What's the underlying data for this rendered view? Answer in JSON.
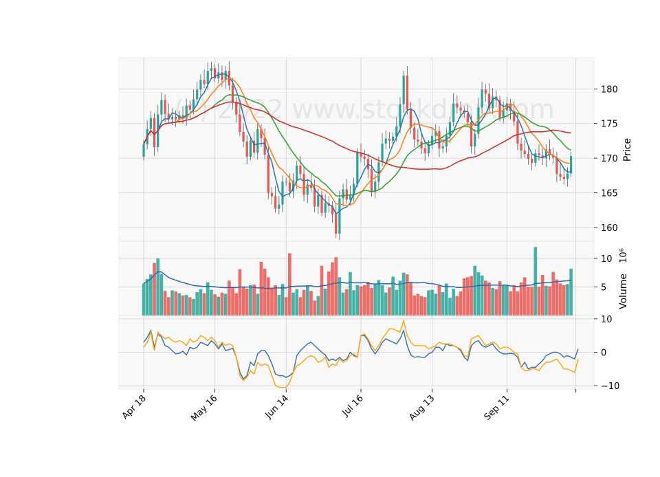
{
  "watermark": "(c) 2022 www.stockdrop.com",
  "chart_data": [
    {
      "type": "candlestick",
      "panel": "price",
      "ylabel": "Price",
      "ylim": [
        158,
        184.5
      ],
      "yticks": [
        160,
        165,
        170,
        175,
        180
      ],
      "x_tick_labels": [
        "Apr 18",
        "May 16",
        "Jun 14",
        "Jul 16",
        "Aug 13",
        "Sep 11"
      ],
      "x_tick_indices": [
        0,
        20,
        40,
        61,
        81,
        102
      ],
      "n_bars": 121,
      "close": [
        172,
        174.2,
        175.8,
        171.6,
        176.3,
        178.4,
        176.4,
        175.6,
        176.0,
        175.6,
        176.2,
        175.7,
        177.6,
        177.0,
        178.5,
        179.9,
        181.3,
        180.7,
        182.6,
        183.0,
        181.5,
        182.4,
        181.3,
        182.6,
        180.5,
        178.0,
        176.3,
        173.8,
        172.4,
        170.2,
        172.5,
        170.8,
        174.2,
        172.9,
        170.5,
        165.0,
        164.5,
        162.7,
        163.3,
        166.6,
        166.5,
        165.2,
        166.8,
        168.9,
        167.7,
        164.7,
        166.2,
        165.7,
        163.0,
        164.7,
        162.1,
        163.5,
        163.1,
        161.9,
        159.1,
        164.2,
        165.5,
        164.0,
        164.8,
        166.3,
        170.8,
        170.2,
        169.9,
        168.4,
        165.1,
        166.6,
        169.4,
        172.1,
        172.8,
        172.5,
        173.1,
        174.6,
        177.8,
        181.9,
        177.0,
        174.4,
        172.7,
        172.4,
        171.4,
        170.7,
        172.0,
        173.2,
        173.9,
        171.4,
        171.7,
        173.3,
        175.2,
        177.9,
        177.3,
        176.9,
        176.4,
        175.2,
        171.7,
        173.5,
        177.3,
        179.9,
        179.3,
        177.2,
        178.9,
        178.4,
        175.8,
        176.9,
        177.9,
        176.8,
        175.3,
        172.1,
        171.1,
        170.6,
        169.9,
        169.3,
        170.7,
        170.4,
        170.0,
        171.3,
        170.4,
        170.1,
        167.7,
        167.3,
        167.0,
        167.8,
        170.3
      ],
      "open": [
        170.2,
        172.0,
        174.2,
        175.8,
        171.6,
        176.3,
        178.4,
        176.4,
        175.6,
        176.0,
        175.6,
        176.2,
        175.7,
        177.6,
        177.0,
        178.5,
        179.9,
        181.3,
        180.7,
        182.6,
        183.0,
        181.5,
        182.4,
        181.3,
        182.6,
        180.5,
        178.0,
        176.3,
        173.8,
        172.4,
        170.2,
        172.5,
        170.8,
        174.2,
        172.9,
        170.5,
        165.0,
        164.5,
        162.7,
        163.3,
        166.6,
        166.5,
        165.2,
        166.8,
        168.9,
        167.7,
        164.7,
        166.2,
        165.7,
        163.0,
        164.7,
        162.1,
        163.5,
        163.1,
        161.9,
        159.1,
        164.2,
        165.5,
        164.0,
        164.8,
        166.3,
        170.8,
        170.2,
        169.9,
        168.4,
        165.1,
        166.6,
        169.4,
        172.1,
        172.8,
        172.5,
        173.1,
        174.6,
        177.8,
        181.9,
        177.0,
        174.4,
        172.7,
        172.4,
        171.4,
        170.7,
        172.0,
        173.2,
        173.9,
        171.4,
        171.7,
        173.3,
        175.2,
        177.9,
        177.3,
        176.9,
        176.4,
        175.2,
        171.7,
        173.5,
        177.3,
        179.9,
        179.3,
        177.2,
        178.9,
        178.4,
        175.8,
        176.9,
        177.9,
        176.8,
        175.3,
        172.1,
        171.1,
        170.6,
        169.9,
        169.3,
        170.7,
        170.4,
        170.0,
        171.3,
        170.4,
        170.1,
        167.7,
        167.3,
        167.0,
        167.8
      ],
      "volume_millions": [
        5.6,
        6.4,
        7.2,
        9.2,
        10.0,
        7.3,
        4.3,
        3.2,
        4.4,
        4.2,
        3.9,
        3.5,
        3.6,
        3.2,
        2.9,
        4.1,
        4.6,
        3.9,
        5.8,
        4.5,
        3.7,
        3.3,
        4.0,
        3.8,
        6.1,
        5.0,
        3.9,
        8.1,
        5.0,
        4.7,
        5.3,
        5.4,
        3.8,
        9.4,
        8.2,
        6.7,
        4.8,
        5.3,
        3.6,
        5.5,
        3.2,
        10.9,
        4.0,
        4.6,
        3.2,
        4.5,
        5.3,
        4.3,
        2.6,
        3.4,
        8.7,
        4.7,
        7.7,
        9.3,
        10.2,
        6.7,
        4.0,
        4.6,
        7.6,
        4.4,
        5.3,
        5.1,
        5.3,
        5.9,
        4.8,
        5.6,
        6.2,
        5.3,
        4.0,
        4.9,
        6.8,
        4.5,
        6.1,
        7.5,
        7.2,
        5.8,
        3.5,
        3.8,
        3.4,
        3.2,
        4.4,
        4.5,
        3.8,
        5.3,
        4.1,
        5.6,
        3.1,
        4.7,
        3.4,
        4.2,
        6.5,
        6.7,
        6.9,
        8.7,
        7.6,
        7.0,
        6.1,
        5.8,
        4.8,
        4.6,
        6.0,
        5.4,
        5.3,
        4.2,
        5.3,
        4.2,
        5.8,
        6.7,
        5.0,
        5.0,
        12.0,
        5.0,
        7.1,
        5.2,
        5.1,
        7.6,
        6.3,
        5.6,
        5.3,
        5.5,
        8.2
      ],
      "moving_averages": [
        {
          "color": "#1f77b4",
          "window": 5
        },
        {
          "color": "#ff7f0e",
          "window": 10
        },
        {
          "color": "#2ca02c",
          "window": 20
        },
        {
          "color": "#d62728",
          "window": 50
        }
      ],
      "up_color": "#26a69a",
      "down_color": "#ef5350"
    },
    {
      "type": "bar",
      "panel": "volume",
      "ylabel": "Volume",
      "scale_label": "10⁶",
      "ylim": [
        0,
        13
      ],
      "yticks": [
        5,
        10
      ],
      "average_line_color": "#2b6cb0"
    },
    {
      "type": "line",
      "panel": "oscillator",
      "ylim": [
        -11,
        11
      ],
      "yticks": [
        10,
        0,
        -10
      ],
      "series": [
        {
          "color": "#2f6db0",
          "values": [
            3,
            4.5,
            6.5,
            1.5,
            5.5,
            4.5,
            2,
            1.5,
            0.5,
            -0.5,
            -0.3,
            0.3,
            -0.8,
            1.5,
            1,
            1.5,
            3,
            2.5,
            2,
            3.5,
            2.5,
            1,
            2.5,
            0.5,
            0.8,
            1.2,
            -1.5,
            -6,
            -8,
            -7,
            -3,
            -4,
            -0.5,
            0.5,
            0.5,
            -1,
            -3.5,
            -6.5,
            -7,
            -7,
            -7.5,
            -7,
            -6,
            -1,
            0.5,
            1.5,
            2.5,
            3,
            2,
            1,
            0,
            -0.8,
            -2.5,
            -2,
            -2.5,
            -1.5,
            -2.5,
            -2,
            0,
            -1,
            -1.5,
            5,
            5,
            3.5,
            1,
            -0.5,
            1,
            3,
            4,
            3.5,
            3,
            2.5,
            4,
            6.5,
            2,
            -0.8,
            -1.5,
            -1.3,
            -1.5,
            -1.5,
            -0.5,
            0,
            1.5,
            1.5,
            0.5,
            2.5,
            2,
            2,
            1.5,
            0.5,
            -1.5,
            -2.5,
            2,
            3,
            3.5,
            2,
            1.5,
            2,
            2.5,
            1,
            0,
            -0.5,
            -0.5,
            -0.3,
            -0.5,
            -1.5,
            -4.5,
            -3,
            -5,
            -4.5,
            -4.5,
            -3.5,
            -2.5,
            -1,
            -0.5,
            0,
            0,
            -0.5,
            -1.5,
            -1,
            -1.5,
            -2,
            1
          ]
        },
        {
          "color": "#ffa500",
          "values": [
            1.5,
            3,
            6,
            0.5,
            6,
            5,
            4,
            4.5,
            3.5,
            3,
            3.5,
            3,
            2,
            4,
            3,
            3.5,
            5,
            4.5,
            3.5,
            4.5,
            3.5,
            1.5,
            3,
            2,
            2.5,
            2,
            -1.5,
            -7,
            -8.5,
            -7.5,
            -5.5,
            -6.5,
            -3,
            -4,
            -3.5,
            -4,
            -7,
            -10,
            -10.5,
            -10.5,
            -10.5,
            -9,
            -6,
            -4,
            -3.5,
            -2.5,
            -1.5,
            -1,
            -1.5,
            -3,
            -2.5,
            -1.5,
            -4.5,
            -3.5,
            -4,
            -2,
            -3,
            -2.5,
            -1,
            -0.5,
            -1.5,
            5,
            5.5,
            4,
            2,
            0.5,
            2,
            4,
            5.5,
            7,
            7,
            6.5,
            6,
            9.5,
            5,
            3,
            2,
            2,
            2,
            2,
            1,
            1.5,
            2,
            3,
            2.5,
            2.5,
            2.5,
            2,
            1.5,
            1,
            -1,
            -1.5,
            4,
            4.5,
            5,
            3.5,
            2,
            2.5,
            3,
            2.5,
            1,
            1.5,
            1.5,
            1,
            0,
            -0.5,
            -4.5,
            -5.5,
            -5.5,
            -5,
            -5,
            -5.5,
            -4,
            -3,
            -3,
            -2.5,
            -2,
            -3.5,
            -5,
            -5,
            -5.5,
            -6,
            -2
          ]
        }
      ]
    }
  ]
}
